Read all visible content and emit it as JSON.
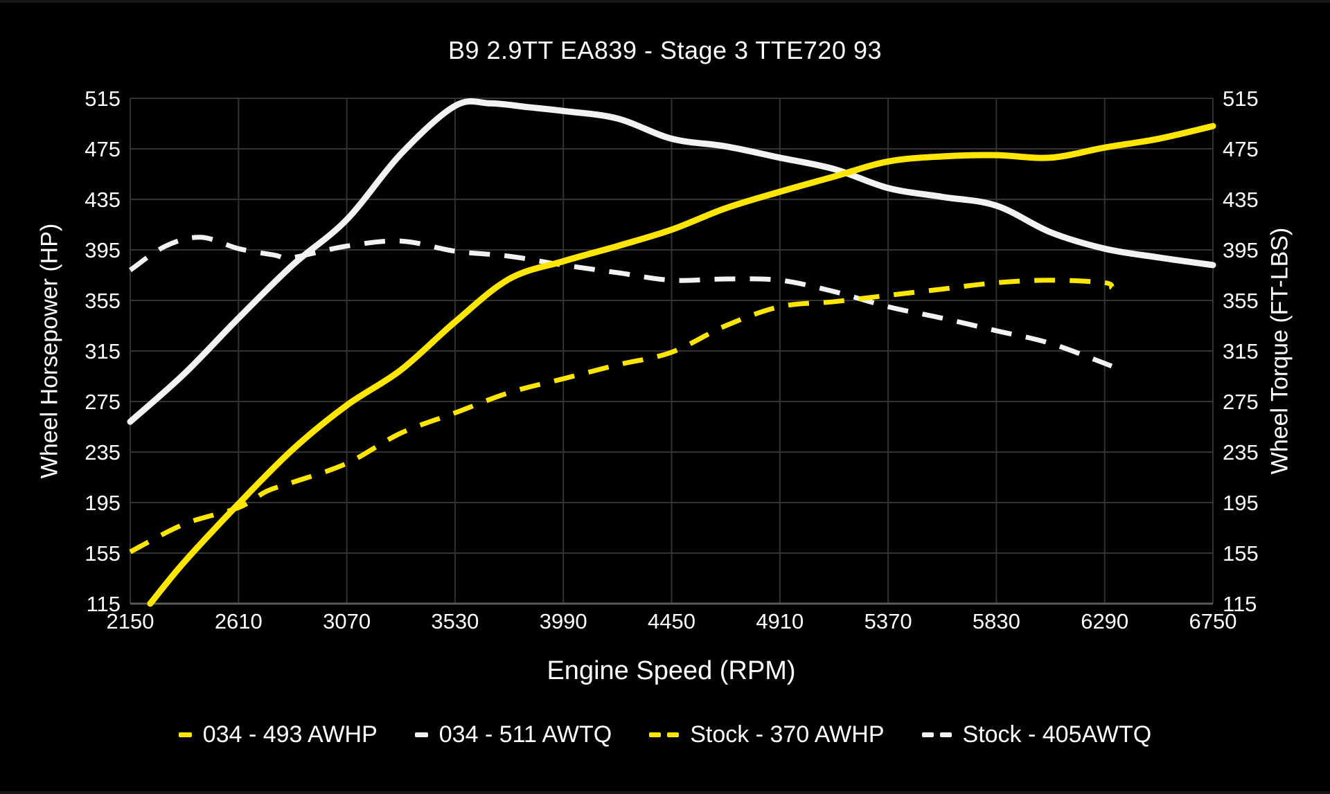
{
  "chart": {
    "title": "B9 2.9TT EA839 - Stage 3 TTE720 93",
    "x_axis_label": "Engine Speed (RPM)",
    "y_left_label": "Wheel Horsepower (HP)",
    "y_right_label": "Wheel Torque (FT-LBS)"
  },
  "colors": {
    "accent_yellow": "#ffe600",
    "accent_white": "#f2f2f2",
    "grid": "#333333",
    "axis_line": "#5a5a5a",
    "text": "#ffffff",
    "background": "#000000"
  },
  "legend": [
    {
      "label": "034 - 493 AWHP",
      "color": "#ffe600",
      "style": "solid"
    },
    {
      "label": "034 - 511 AWTQ",
      "color": "#f2f2f2",
      "style": "solid"
    },
    {
      "label": "Stock - 370 AWHP",
      "color": "#ffe600",
      "style": "dashed"
    },
    {
      "label": "Stock - 405AWTQ",
      "color": "#f2f2f2",
      "style": "dashed"
    }
  ],
  "chart_data": {
    "type": "line",
    "title": "B9 2.9TT EA839 - Stage 3 TTE720 93",
    "xlabel": "Engine Speed (RPM)",
    "ylabel_left": "Wheel Horsepower (HP)",
    "ylabel_right": "Wheel Torque (FT-LBS)",
    "xlim": [
      2150,
      6750
    ],
    "ylim": [
      115,
      515
    ],
    "x_ticks": [
      2150,
      2610,
      3070,
      3530,
      3990,
      4450,
      4910,
      5370,
      5830,
      6290,
      6750
    ],
    "y_ticks": [
      115,
      155,
      195,
      235,
      275,
      315,
      355,
      395,
      435,
      475,
      515
    ],
    "grid": true,
    "legend_position": "bottom",
    "series": [
      {
        "name": "Stock - 405AWTQ",
        "axis": "right",
        "units": "FT-LBS",
        "color": "#f2f2f2",
        "dash": true,
        "peak_value": 405,
        "points": [
          [
            2150,
            379
          ],
          [
            2300,
            398
          ],
          [
            2450,
            405
          ],
          [
            2610,
            396
          ],
          [
            2760,
            391
          ],
          [
            2840,
            389
          ],
          [
            3070,
            398
          ],
          [
            3300,
            402
          ],
          [
            3530,
            394
          ],
          [
            3760,
            390
          ],
          [
            3990,
            383
          ],
          [
            4220,
            377
          ],
          [
            4450,
            371
          ],
          [
            4680,
            372
          ],
          [
            4910,
            371
          ],
          [
            5140,
            362
          ],
          [
            5370,
            350
          ],
          [
            5600,
            341
          ],
          [
            5830,
            331
          ],
          [
            6060,
            321
          ],
          [
            6320,
            303
          ]
        ]
      },
      {
        "name": "Stock - 370 AWHP",
        "axis": "left",
        "units": "HP",
        "color": "#ffe600",
        "dash": true,
        "peak_value": 370,
        "points": [
          [
            2150,
            156
          ],
          [
            2380,
            178
          ],
          [
            2610,
            191
          ],
          [
            2730,
            204
          ],
          [
            2840,
            211
          ],
          [
            3070,
            226
          ],
          [
            3300,
            250
          ],
          [
            3530,
            266
          ],
          [
            3760,
            282
          ],
          [
            3990,
            293
          ],
          [
            4220,
            304
          ],
          [
            4450,
            314
          ],
          [
            4680,
            335
          ],
          [
            4910,
            350
          ],
          [
            5140,
            354
          ],
          [
            5370,
            359
          ],
          [
            5600,
            364
          ],
          [
            5830,
            369
          ],
          [
            6060,
            371
          ],
          [
            6290,
            369
          ],
          [
            6320,
            365
          ]
        ]
      },
      {
        "name": "034 - 511 AWTQ",
        "axis": "right",
        "units": "FT-LBS",
        "color": "#f2f2f2",
        "dash": false,
        "peak_value": 511,
        "points": [
          [
            2150,
            259
          ],
          [
            2380,
            297
          ],
          [
            2610,
            341
          ],
          [
            2840,
            383
          ],
          [
            3070,
            419
          ],
          [
            3300,
            471
          ],
          [
            3530,
            509
          ],
          [
            3680,
            511
          ],
          [
            3840,
            508
          ],
          [
            3990,
            505
          ],
          [
            4220,
            499
          ],
          [
            4450,
            483
          ],
          [
            4680,
            477
          ],
          [
            4910,
            468
          ],
          [
            5140,
            459
          ],
          [
            5370,
            444
          ],
          [
            5600,
            437
          ],
          [
            5830,
            430
          ],
          [
            6060,
            409
          ],
          [
            6290,
            396
          ],
          [
            6520,
            389
          ],
          [
            6750,
            383
          ]
        ]
      },
      {
        "name": "034 - 493 AWHP",
        "axis": "left",
        "units": "HP",
        "color": "#ffe600",
        "dash": false,
        "peak_value": 493,
        "points": [
          [
            2235,
            115
          ],
          [
            2380,
            148
          ],
          [
            2610,
            194
          ],
          [
            2840,
            237
          ],
          [
            3070,
            272
          ],
          [
            3300,
            300
          ],
          [
            3530,
            338
          ],
          [
            3760,
            372
          ],
          [
            3990,
            386
          ],
          [
            4220,
            398
          ],
          [
            4450,
            411
          ],
          [
            4680,
            428
          ],
          [
            4910,
            441
          ],
          [
            5140,
            453
          ],
          [
            5370,
            465
          ],
          [
            5600,
            469
          ],
          [
            5830,
            470
          ],
          [
            6060,
            468
          ],
          [
            6290,
            476
          ],
          [
            6520,
            483
          ],
          [
            6750,
            493
          ]
        ]
      }
    ]
  }
}
